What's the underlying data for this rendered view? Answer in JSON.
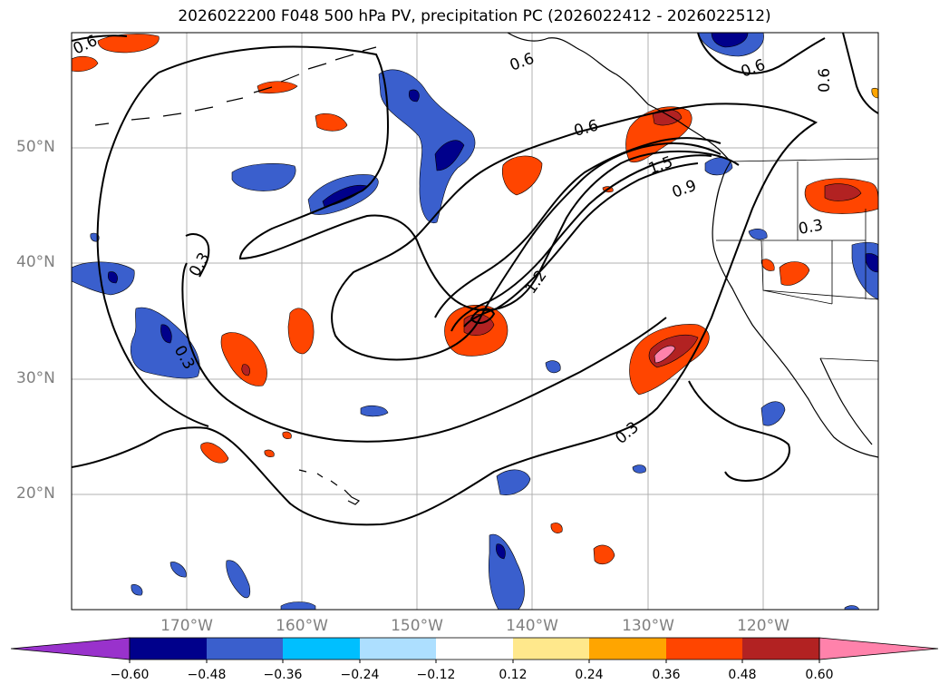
{
  "title": "2026022200 F048 500 hPa PV, precipitation PC (2026022412 - 2026022512)",
  "map": {
    "lat_labels": [
      "50°N",
      "40°N",
      "30°N",
      "20°N"
    ],
    "lon_labels": [
      "170°W",
      "160°W",
      "150°W",
      "140°W",
      "130°W",
      "120°W"
    ],
    "pv_contour_labels": [
      "0.6",
      "0.6",
      "0.6",
      "0.6",
      "0.6",
      "0.3",
      "0.3",
      "0.3",
      "0.3",
      "1.2",
      "1.5",
      "0.9"
    ]
  },
  "colorbar": {
    "tick_labels": [
      "−0.60",
      "−0.48",
      "−0.36",
      "−0.24",
      "−0.12",
      "0.12",
      "0.24",
      "0.36",
      "0.48",
      "0.60"
    ],
    "colors": [
      "#9932CC",
      "#00008B",
      "#3A5FCD",
      "#00BFFF",
      "#ADDFFF",
      "#FFFFFF",
      "#FFE88C",
      "#FFA500",
      "#FF4500",
      "#B22222",
      "#FF82AB"
    ]
  }
}
